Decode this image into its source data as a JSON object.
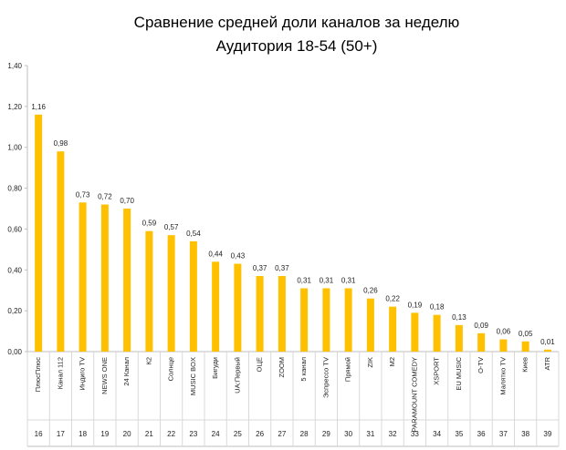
{
  "chart_data": {
    "type": "bar",
    "title": "Сравнение средней доли каналов за неделю",
    "subtitle": "Аудитория 18-54 (50+)",
    "xlabel": "",
    "ylabel": "",
    "ylim": [
      0,
      1.4
    ],
    "yticks": [
      "0,00",
      "0,20",
      "0,40",
      "0,60",
      "0,80",
      "1,00",
      "1,20",
      "1,40"
    ],
    "grid": false,
    "legend": "none",
    "bar_color": "#FFC000",
    "categories": [
      "ПлюсПлюс",
      "Канал 112",
      "Индиго TV",
      "NEWS ONE",
      "24 Канал",
      "К2",
      "Солнце",
      "MUSIC BOX",
      "Бигуди",
      "UA:Первый",
      "ОЦЕ",
      "ZOOM",
      "5 канал",
      "Эспрессо TV",
      "Прямой",
      "ZIK",
      "М2",
      "PARAMOUNT COMEDY",
      "XSPORT",
      "EU MUSIC",
      "O-TV",
      "Малятко TV",
      "Киев",
      "ATR"
    ],
    "values": [
      1.16,
      0.98,
      0.73,
      0.72,
      0.7,
      0.59,
      0.57,
      0.54,
      0.44,
      0.43,
      0.37,
      0.37,
      0.31,
      0.31,
      0.31,
      0.26,
      0.22,
      0.19,
      0.18,
      0.13,
      0.09,
      0.06,
      0.05,
      0.01
    ],
    "value_labels": [
      "1,16",
      "0,98",
      "0,73",
      "0,72",
      "0,70",
      "0,59",
      "0,57",
      "0,54",
      "0,44",
      "0,43",
      "0,37",
      "0,37",
      "0,31",
      "0,31",
      "0,31",
      "0,26",
      "0,22",
      "0,19",
      "0,18",
      "0,13",
      "0,09",
      "0,06",
      "0,05",
      "0,01"
    ],
    "rank_numbers": [
      "16",
      "17",
      "18",
      "19",
      "20",
      "21",
      "22",
      "23",
      "24",
      "25",
      "26",
      "27",
      "28",
      "29",
      "30",
      "31",
      "32",
      "33",
      "34",
      "35",
      "36",
      "37",
      "38",
      "39"
    ]
  }
}
